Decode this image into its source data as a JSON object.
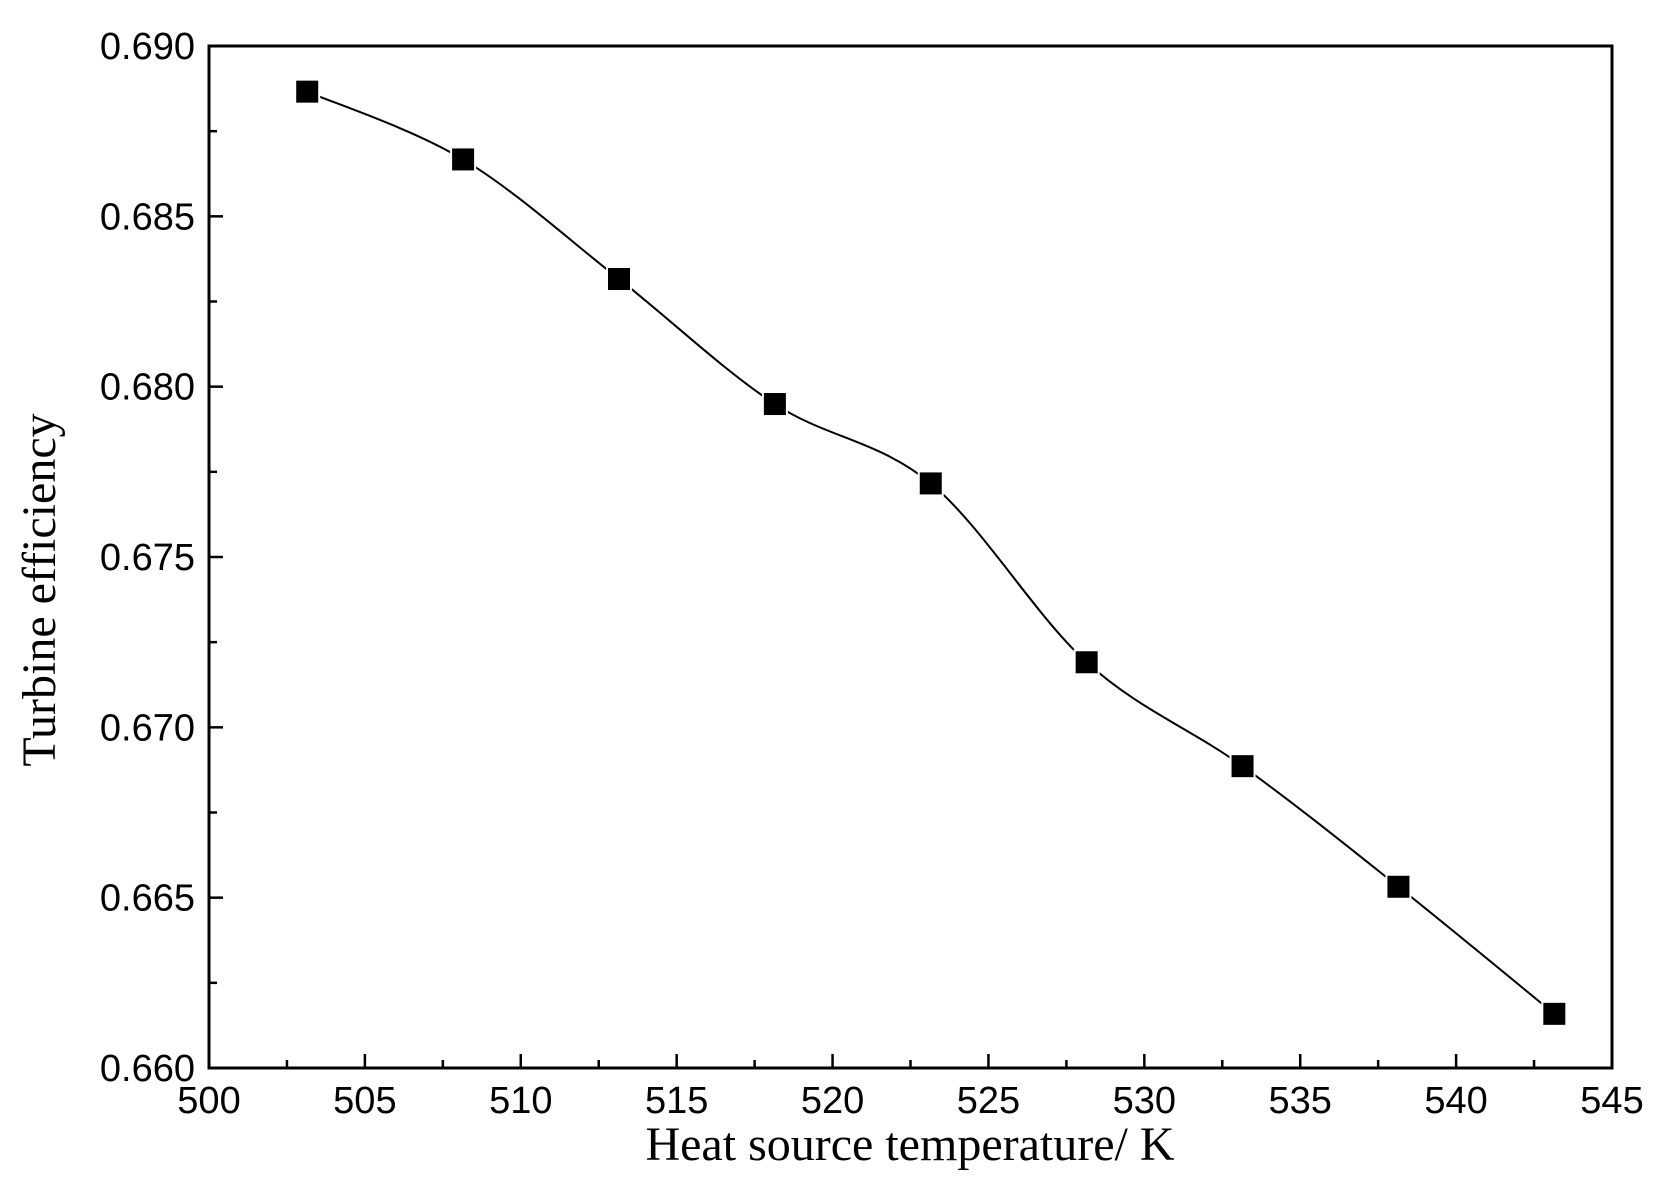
{
  "chart_data": {
    "type": "line",
    "x_label": "Heat source temperature/ K",
    "y_label": "Turbine efficiency",
    "x": [
      503.15,
      508.15,
      513.15,
      518.15,
      523.15,
      528.15,
      533.15,
      538.15,
      543.15
    ],
    "series": [
      {
        "color": "#000000",
        "values": [
          0.68866,
          0.68667,
          0.68316,
          0.67949,
          0.67716,
          0.67191,
          0.66886,
          0.66532,
          0.66159
        ]
      }
    ],
    "xlim": [
      500,
      545
    ],
    "xticks": [
      500,
      505,
      510,
      515,
      520,
      525,
      530,
      535,
      540,
      545
    ],
    "ylim": [
      0.66,
      0.69
    ],
    "yticks": [
      {
        "value": 0.66,
        "label": "0.660"
      },
      {
        "value": 0.665,
        "label": "0.665"
      },
      {
        "value": 0.67,
        "label": "0.670"
      },
      {
        "value": 0.675,
        "label": "0.675"
      },
      {
        "value": 0.68,
        "label": "0.680"
      },
      {
        "value": 0.685,
        "label": "0.685"
      },
      {
        "value": 0.69,
        "label": "0.690"
      }
    ],
    "grid": false
  }
}
